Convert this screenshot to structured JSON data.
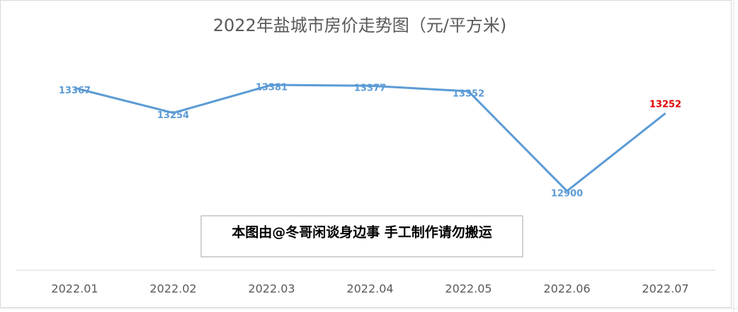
{
  "chart_data": {
    "type": "line",
    "title": "2022年盐城市房价走势图（元/平方米)",
    "categories": [
      "2022.01",
      "2022.02",
      "2022.03",
      "2022.04",
      "2022.05",
      "2022.06",
      "2022.07"
    ],
    "series": [
      {
        "name": "房价",
        "color": "#5b9bd5",
        "values": [
          13367,
          13254,
          13381,
          13377,
          13352,
          12900,
          13252
        ]
      }
    ],
    "highlight_color": "#e00000",
    "annotation": "本图由@冬哥闲谈身边事 手工制作请勿搬运",
    "legend": false,
    "grid": false
  }
}
